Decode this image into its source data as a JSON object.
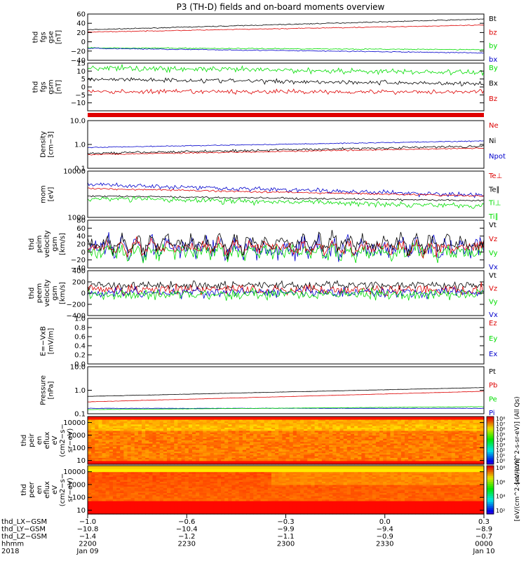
{
  "title": "P3 (TH-D) fields and on-board moments overview",
  "colors": {
    "black": "#000000",
    "red": "#dd0000",
    "green": "#00dd00",
    "blue": "#0000cc"
  },
  "chart_data": [
    {
      "type": "line",
      "panel": "fgs-gse",
      "ylabel": [
        "thd",
        "fgs",
        "gse",
        "[nT]"
      ],
      "ylim": [
        -40,
        60
      ],
      "yticks": [
        "60",
        "40",
        "20",
        "0",
        "−20",
        "−40"
      ],
      "yticks_values": [
        60,
        40,
        20,
        0,
        -20,
        -40
      ],
      "legend": [
        {
          "text": "Bt",
          "color": "#000000"
        },
        {
          "text": "bz",
          "color": "#dd0000"
        },
        {
          "text": "by",
          "color": "#00dd00"
        },
        {
          "text": "bx",
          "color": "#0000cc"
        }
      ],
      "series": [
        {
          "color": "#000000",
          "start": 26,
          "end": 49,
          "noise": 0.5
        },
        {
          "color": "#dd0000",
          "start": 21,
          "end": 36,
          "noise": 0.5
        },
        {
          "color": "#00dd00",
          "start": -13,
          "end": -17,
          "noise": 0.6
        },
        {
          "color": "#0000cc",
          "start": -14,
          "end": -24,
          "noise": 0.6
        }
      ]
    },
    {
      "type": "line",
      "panel": "fgs-gsm",
      "ylabel": [
        "thd",
        "fgs",
        "gsm",
        "[nT]"
      ],
      "ylim": [
        -15,
        15
      ],
      "yticks": [
        "15",
        "10",
        "5",
        "0",
        "−5",
        "−10"
      ],
      "yticks_values": [
        15,
        10,
        5,
        0,
        -5,
        -10
      ],
      "legend": [
        {
          "text": "By",
          "color": "#00dd00"
        },
        {
          "text": "Bx",
          "color": "#000000"
        },
        {
          "text": "Bz",
          "color": "#dd0000"
        }
      ],
      "series": [
        {
          "color": "#00dd00",
          "start": 12,
          "end": 9,
          "noise": 1.0
        },
        {
          "color": "#000000",
          "start": 5,
          "end": 2,
          "noise": 0.8
        },
        {
          "color": "#dd0000",
          "start": -3,
          "end": -3,
          "noise": 0.8
        }
      ]
    },
    {
      "type": "line",
      "panel": "density",
      "log": true,
      "ylabel": [
        "Density",
        "[cm−3]"
      ],
      "ylim": [
        0.1,
        10
      ],
      "yticks": [
        "10.0",
        "1.0",
        "0.1"
      ],
      "yticks_values": [
        10,
        1,
        0.1
      ],
      "legend": [
        {
          "text": "Ne",
          "color": "#dd0000"
        },
        {
          "text": "Ni",
          "color": "#000000"
        },
        {
          "text": "Npot",
          "color": "#0000cc"
        }
      ],
      "series": [
        {
          "color": "#0000cc",
          "start": 0.75,
          "end": 1.4,
          "noise": 0.03
        },
        {
          "color": "#000000",
          "start": 0.42,
          "end": 0.85,
          "noise": 0.08
        },
        {
          "color": "#dd0000",
          "start": 0.38,
          "end": 0.7,
          "noise": 0.04
        }
      ]
    },
    {
      "type": "line",
      "panel": "temperature",
      "log": true,
      "ylabel": [
        "mom",
        "[eV]"
      ],
      "ylim": [
        1000,
        10000
      ],
      "yticks": [
        "10000",
        "1000"
      ],
      "yticks_values": [
        10000,
        1000
      ],
      "legend": [
        {
          "text": "Te⊥",
          "color": "#dd0000"
        },
        {
          "text": "Te∥",
          "color": "#000000"
        },
        {
          "text": "Ti⊥",
          "color": "#00dd00"
        },
        {
          "text": "Ti∥",
          "color": "#00dd00"
        }
      ],
      "series": [
        {
          "color": "#0000cc",
          "start": 5200,
          "end": 3000,
          "noise": 0.08
        },
        {
          "color": "#dd0000",
          "start": 4200,
          "end": 2900,
          "noise": 0.03
        },
        {
          "color": "#000000",
          "start": 2900,
          "end": 2300,
          "noise": 0.03
        },
        {
          "color": "#00dd00",
          "start": 2600,
          "end": 1800,
          "noise": 0.09
        }
      ]
    },
    {
      "type": "line",
      "panel": "peim-velocity",
      "ylabel": [
        "thd",
        "peim",
        "velocity",
        "gsm",
        "[km/s]"
      ],
      "ylim": [
        -40,
        80
      ],
      "yticks": [
        "80",
        "60",
        "40",
        "20",
        "0",
        "−20",
        "−40"
      ],
      "yticks_values": [
        80,
        60,
        40,
        20,
        0,
        -20,
        -40
      ],
      "legend": [
        {
          "text": "Vt",
          "color": "#000000"
        },
        {
          "text": "Vz",
          "color": "#dd0000"
        },
        {
          "text": "Vy",
          "color": "#00dd00"
        },
        {
          "text": "Vx",
          "color": "#0000cc"
        }
      ],
      "series": [
        {
          "color": "#0000cc",
          "start": 10,
          "end": 10,
          "noise": 15,
          "wave": 15
        },
        {
          "color": "#00dd00",
          "start": 0,
          "end": 0,
          "noise": 10,
          "wave": 8
        },
        {
          "color": "#dd0000",
          "start": 12,
          "end": 12,
          "noise": 8,
          "wave": 10
        },
        {
          "color": "#000000",
          "start": 22,
          "end": 22,
          "noise": 10,
          "wave": 14
        }
      ]
    },
    {
      "type": "line",
      "panel": "peem-velocity",
      "ylabel": [
        "thd",
        "peem",
        "velocity",
        "gsm",
        "[km/s]"
      ],
      "ylim": [
        -400,
        400
      ],
      "yticks": [
        "400",
        "200",
        "0",
        "−200",
        "−400"
      ],
      "yticks_values": [
        400,
        200,
        0,
        -200,
        -400
      ],
      "legend": [
        {
          "text": "Vt",
          "color": "#000000"
        },
        {
          "text": "Vz",
          "color": "#dd0000"
        },
        {
          "text": "Vy",
          "color": "#00dd00"
        },
        {
          "text": "Vx",
          "color": "#0000cc"
        }
      ],
      "series": [
        {
          "color": "#000000",
          "start": 140,
          "end": 140,
          "noise": 45
        },
        {
          "color": "#dd0000",
          "start": 60,
          "end": 60,
          "noise": 50
        },
        {
          "color": "#0000cc",
          "start": 10,
          "end": 10,
          "noise": 50
        },
        {
          "color": "#00dd00",
          "start": -20,
          "end": -20,
          "noise": 55
        }
      ]
    },
    {
      "type": "line",
      "panel": "efield",
      "ylabel": [
        "E=−VxB",
        "[mV/m]"
      ],
      "ylim": [
        0,
        1
      ],
      "yticks": [
        "1.0",
        "0.8",
        "0.6",
        "0.4",
        "0.2",
        "0.0"
      ],
      "yticks_values": [
        1.0,
        0.8,
        0.6,
        0.4,
        0.2,
        0.0
      ],
      "legend": [
        {
          "text": "Ez",
          "color": "#dd0000"
        },
        {
          "text": "Ey",
          "color": "#00dd00"
        },
        {
          "text": "Ex",
          "color": "#0000cc"
        }
      ],
      "series": []
    },
    {
      "type": "line",
      "panel": "pressure",
      "log": true,
      "ylabel": [
        "Pressure",
        "[nPa]"
      ],
      "ylim": [
        0.1,
        10
      ],
      "yticks": [
        "10.0",
        "1.0",
        "0.1"
      ],
      "yticks_values": [
        10,
        1,
        0.1
      ],
      "legend": [
        {
          "text": "Pt",
          "color": "#000000"
        },
        {
          "text": "Pb",
          "color": "#dd0000"
        },
        {
          "text": "Pe",
          "color": "#00dd00"
        },
        {
          "text": "Pi",
          "color": "#0000cc"
        }
      ],
      "series": [
        {
          "color": "#000000",
          "start": 0.55,
          "end": 1.3,
          "noise": 0.01
        },
        {
          "color": "#dd0000",
          "start": 0.32,
          "end": 0.9,
          "noise": 0.01
        },
        {
          "color": "#0000cc",
          "start": 0.17,
          "end": 0.17,
          "noise": 0.015
        },
        {
          "color": "#00dd00",
          "start": 0.15,
          "end": 0.2,
          "noise": 0.01
        }
      ]
    },
    {
      "type": "heatmap",
      "panel": "peir-spectrogram",
      "ylabel": [
        "thd",
        "peir",
        "en",
        "eflux",
        "eV",
        "(cm2−s−",
        "sr−eV)"
      ],
      "ylim": [
        5,
        30000
      ],
      "log": true,
      "yticks": [
        "10000",
        "1000",
        "100",
        "10"
      ],
      "yticks_values": [
        10000,
        1000,
        100,
        10
      ],
      "colorbar": {
        "label": "[eV/(cm^2-s-sr-eV)] (All Qs)",
        "ticks": [
          "10⁸",
          "10⁷",
          "10⁶",
          "10⁵",
          "10⁴",
          "10³",
          "10²",
          "10¹",
          "10⁰"
        ]
      }
    },
    {
      "type": "heatmap",
      "panel": "peer-spectrogram",
      "ylabel": [
        "thd",
        "peer",
        "en",
        "eflux",
        "eV",
        "(cm2−s−",
        "sr−eV)"
      ],
      "ylim": [
        5,
        30000
      ],
      "log": true,
      "yticks": [
        "10000",
        "1000",
        "100",
        "10"
      ],
      "yticks_values": [
        10000,
        1000,
        100,
        10
      ],
      "colorbar": {
        "label": "[eV/(cm^2-s-sr-eV)]",
        "ticks": [
          "10⁸",
          "10⁶",
          "10⁴",
          "10²"
        ]
      }
    }
  ],
  "xaxis": {
    "rows": [
      {
        "label": "thd_LX−GSM",
        "values": [
          "−1.0",
          "−0.6",
          "−0.3",
          "0.0",
          "0.3"
        ]
      },
      {
        "label": "thd_LY−GSM",
        "values": [
          "−10.8",
          "−10.4",
          "−9.9",
          "−9.4",
          "−8.9"
        ]
      },
      {
        "label": "thd_LZ−GSM",
        "values": [
          "−1.4",
          "−1.2",
          "−1.1",
          "−0.9",
          "−0.7"
        ]
      },
      {
        "label": "hhmm",
        "values": [
          "2200",
          "2230",
          "2300",
          "2330",
          "0000"
        ]
      },
      {
        "label": "2018",
        "values": [
          "Jan 09",
          "",
          "",
          "",
          "Jan 10"
        ]
      }
    ]
  }
}
